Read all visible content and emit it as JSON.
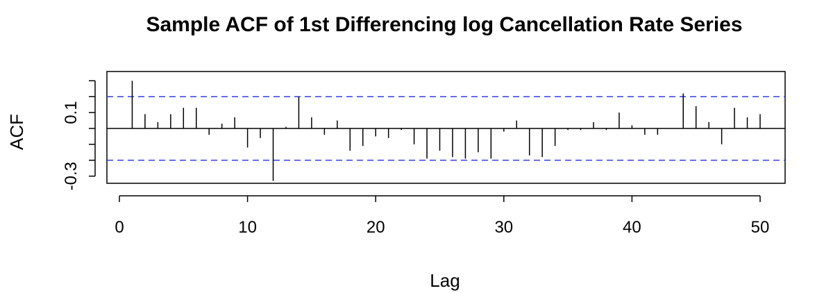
{
  "chart_data": {
    "type": "bar",
    "title": "Sample ACF of 1st Differencing log Cancellation Rate Series",
    "xlabel": "Lag",
    "ylabel": "ACF",
    "xlim": [
      0,
      52
    ],
    "ylim": [
      -0.4,
      0.3
    ],
    "x_ticks": [
      0,
      10,
      20,
      30,
      40,
      50
    ],
    "y_ticks": [
      -0.3,
      -0.1,
      0.1
    ],
    "y_ticks_labeled": [
      -0.3,
      0.1
    ],
    "confidence_band": 0.2,
    "colors": {
      "spike": "#000000",
      "band": "#2f3fe8",
      "axis": "#000000"
    },
    "series": [
      {
        "lags": [
          1,
          2,
          3,
          4,
          5,
          6,
          7,
          8,
          9,
          10,
          11,
          12,
          13,
          14,
          15,
          16,
          17,
          18,
          19,
          20,
          21,
          22,
          23,
          24,
          25,
          26,
          27,
          28,
          29,
          30,
          31,
          32,
          33,
          34,
          35,
          36,
          37,
          38,
          39,
          40,
          41,
          42,
          43,
          44,
          45,
          46,
          47,
          48,
          49,
          50
        ],
        "values": [
          0.3,
          0.09,
          0.04,
          0.09,
          0.13,
          0.13,
          -0.04,
          0.03,
          0.07,
          -0.12,
          -0.06,
          -0.33,
          0.01,
          0.2,
          0.07,
          -0.04,
          0.05,
          -0.14,
          -0.11,
          -0.05,
          -0.06,
          -0.01,
          -0.1,
          -0.19,
          -0.14,
          -0.18,
          -0.19,
          -0.15,
          -0.19,
          -0.02,
          0.05,
          -0.17,
          -0.18,
          -0.11,
          -0.01,
          -0.01,
          0.04,
          -0.01,
          0.1,
          0.02,
          -0.04,
          -0.04,
          0.0,
          0.22,
          0.14,
          0.04,
          -0.1,
          0.13,
          0.07,
          0.09
        ]
      }
    ]
  }
}
